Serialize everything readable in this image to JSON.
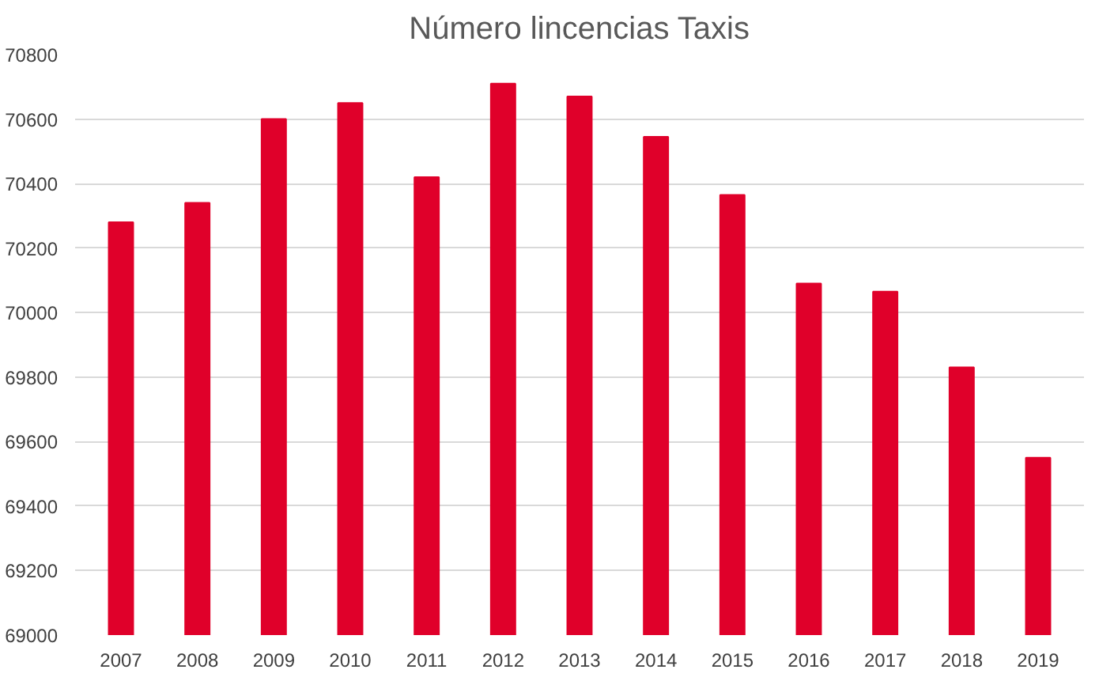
{
  "chart_data": {
    "type": "bar",
    "title": "Número lincencias Taxis",
    "categories": [
      "2007",
      "2008",
      "2009",
      "2010",
      "2011",
      "2012",
      "2013",
      "2014",
      "2015",
      "2016",
      "2017",
      "2018",
      "2019"
    ],
    "values": [
      70280,
      70340,
      70600,
      70650,
      70420,
      70710,
      70670,
      70545,
      70365,
      70090,
      70065,
      69830,
      69550
    ],
    "color": "#e0002a",
    "ylim": [
      69000,
      70800
    ],
    "yticks": [
      69000,
      69200,
      69400,
      69600,
      69800,
      70000,
      70200,
      70400,
      70600,
      70800
    ],
    "grid": "y"
  }
}
